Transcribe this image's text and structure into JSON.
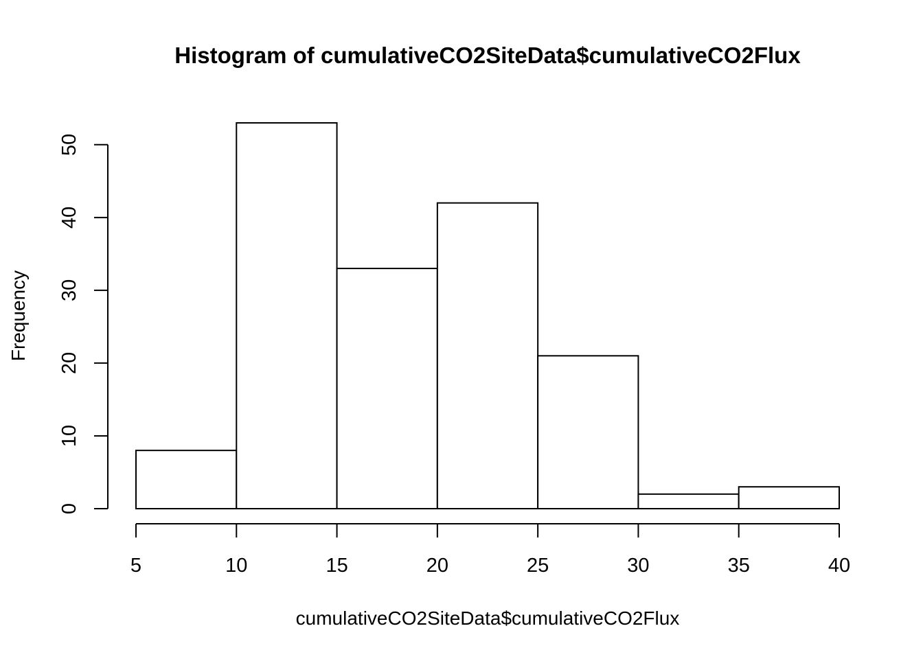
{
  "chart_data": {
    "type": "bar",
    "title": "Histogram of cumulativeCO2SiteData$cumulativeCO2Flux",
    "xlabel": "cumulativeCO2SiteData$cumulativeCO2Flux",
    "ylabel": "Frequency",
    "bins": [
      {
        "from": 5,
        "to": 10,
        "count": 8
      },
      {
        "from": 10,
        "to": 15,
        "count": 53
      },
      {
        "from": 15,
        "to": 20,
        "count": 33
      },
      {
        "from": 20,
        "to": 25,
        "count": 42
      },
      {
        "from": 25,
        "to": 30,
        "count": 21
      },
      {
        "from": 30,
        "to": 35,
        "count": 2
      },
      {
        "from": 35,
        "to": 40,
        "count": 3
      }
    ],
    "xlim": [
      5,
      40
    ],
    "ylim": [
      0,
      53
    ],
    "x_ticks": [
      5,
      10,
      15,
      20,
      25,
      30,
      35,
      40
    ],
    "y_ticks": [
      0,
      10,
      20,
      30,
      40,
      50
    ],
    "grid": false,
    "bar_fill": "#ffffff",
    "bar_stroke": "#000000"
  }
}
